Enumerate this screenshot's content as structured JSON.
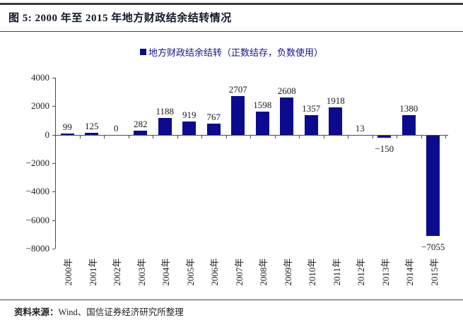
{
  "figure": {
    "title": "图 5: 2000 年至 2015 年地方财政结余结转情况",
    "source_label": "资料来源：",
    "source_text": "Wind、国信证券经济研究所整理"
  },
  "chart_data": {
    "type": "bar",
    "title": "图 5: 2000 年至 2015 年地方财政结余结转情况",
    "legend": "地方财政结余结转（正数结存，负数使用）",
    "legend_position": "top",
    "categories": [
      "2000年",
      "2001年",
      "2002年",
      "2003年",
      "2004年",
      "2005年",
      "2006年",
      "2007年",
      "2008年",
      "2009年",
      "2010年",
      "2011年",
      "2012年",
      "2013年",
      "2014年",
      "2015年"
    ],
    "values": [
      99,
      125,
      0,
      282,
      1188,
      919,
      767,
      2707,
      1598,
      2608,
      1357,
      1918,
      13,
      -150,
      1380,
      -7055
    ],
    "xlabel": "",
    "ylabel": "",
    "ylim": [
      -8000,
      4000
    ],
    "yticks": [
      4000,
      2000,
      0,
      -2000,
      -4000,
      -6000,
      -8000
    ],
    "grid": false,
    "bar_color": "#0b0b8f",
    "axis_color": "#4a4a4a"
  }
}
